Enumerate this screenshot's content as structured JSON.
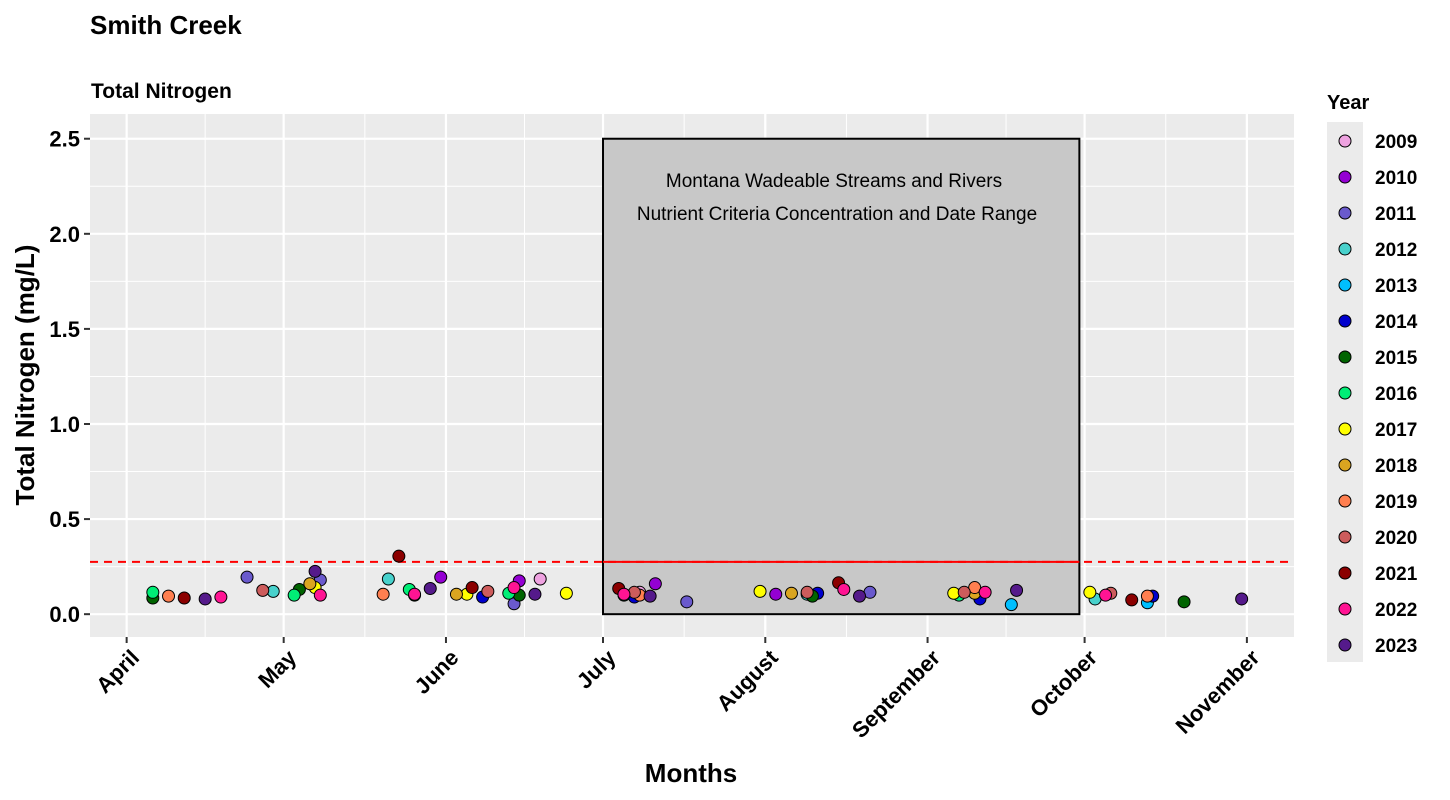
{
  "chart_data": {
    "type": "scatter",
    "title": "Smith Creek",
    "subtitle": "Total Nitrogen",
    "xlabel": "Months",
    "ylabel": "Total Nitrogen (mg/L)",
    "x_ticks": [
      "April",
      "May",
      "June",
      "July",
      "August",
      "September",
      "October",
      "November"
    ],
    "x_range": [
      "2023-03-25",
      "2023-11-10"
    ],
    "ylim": [
      -0.12,
      2.63
    ],
    "y_ticks": [
      "0.0",
      "0.5",
      "1.0",
      "1.5",
      "2.0",
      "2.5"
    ],
    "grid": true,
    "legend_title": "Year",
    "legend_position": "right",
    "threshold": 0.275,
    "criteria_window": {
      "start": "2023-07-01",
      "end": "2023-09-30",
      "ymin": 0,
      "ymax": 2.5
    },
    "annotation": [
      "Montana Wadeable Streams and Rivers",
      "Nutrient Criteria Concentration and Date Range"
    ],
    "series": [
      {
        "name": "2009",
        "color": "#eea2e0",
        "points": [
          [
            "2023-06-19",
            0.185
          ],
          [
            "2023-07-08",
            0.115
          ]
        ]
      },
      {
        "name": "2010",
        "color": "#9400d3",
        "points": [
          [
            "2023-05-31",
            0.195
          ],
          [
            "2023-06-15",
            0.175
          ],
          [
            "2023-07-11",
            0.16
          ],
          [
            "2023-08-03",
            0.105
          ]
        ]
      },
      {
        "name": "2011",
        "color": "#6a5acd",
        "points": [
          [
            "2023-04-24",
            0.195
          ],
          [
            "2023-05-08",
            0.18
          ],
          [
            "2023-06-14",
            0.055
          ],
          [
            "2023-07-17",
            0.065
          ],
          [
            "2023-08-21",
            0.115
          ]
        ]
      },
      {
        "name": "2012",
        "color": "#48d1cc",
        "points": [
          [
            "2023-04-29",
            0.12
          ],
          [
            "2023-05-21",
            0.185
          ],
          [
            "2023-08-09",
            0.105
          ],
          [
            "2023-10-03",
            0.08
          ]
        ]
      },
      {
        "name": "2013",
        "color": "#00bfff",
        "points": [
          [
            "2023-09-17",
            0.05
          ],
          [
            "2023-10-13",
            0.06
          ]
        ]
      },
      {
        "name": "2014",
        "color": "#0000cd",
        "points": [
          [
            "2023-06-08",
            0.09
          ],
          [
            "2023-07-07",
            0.09
          ],
          [
            "2023-08-11",
            0.11
          ],
          [
            "2023-09-11",
            0.08
          ],
          [
            "2023-10-14",
            0.095
          ]
        ]
      },
      {
        "name": "2015",
        "color": "#006400",
        "points": [
          [
            "2023-04-06",
            0.085
          ],
          [
            "2023-05-04",
            0.13
          ],
          [
            "2023-05-26",
            0.1
          ],
          [
            "2023-06-15",
            0.1
          ],
          [
            "2023-08-10",
            0.095
          ],
          [
            "2023-10-20",
            0.065
          ]
        ]
      },
      {
        "name": "2016",
        "color": "#00ee76",
        "points": [
          [
            "2023-04-06",
            0.115
          ],
          [
            "2023-05-03",
            0.1
          ],
          [
            "2023-05-25",
            0.13
          ],
          [
            "2023-06-13",
            0.11
          ],
          [
            "2023-07-05",
            0.1
          ],
          [
            "2023-09-07",
            0.1
          ]
        ]
      },
      {
        "name": "2017",
        "color": "#ffff00",
        "points": [
          [
            "2023-05-07",
            0.14
          ],
          [
            "2023-06-05",
            0.105
          ],
          [
            "2023-06-24",
            0.11
          ],
          [
            "2023-07-31",
            0.12
          ],
          [
            "2023-09-06",
            0.11
          ],
          [
            "2023-10-02",
            0.115
          ]
        ]
      },
      {
        "name": "2018",
        "color": "#daa520",
        "points": [
          [
            "2023-05-06",
            0.16
          ],
          [
            "2023-06-03",
            0.105
          ],
          [
            "2023-08-06",
            0.11
          ],
          [
            "2023-09-10",
            0.11
          ]
        ]
      },
      {
        "name": "2019",
        "color": "#ff7f50",
        "points": [
          [
            "2023-04-09",
            0.095
          ],
          [
            "2023-05-20",
            0.105
          ],
          [
            "2023-07-08",
            0.1
          ],
          [
            "2023-09-10",
            0.14
          ],
          [
            "2023-10-13",
            0.095
          ]
        ]
      },
      {
        "name": "2020",
        "color": "#cd5c5c",
        "points": [
          [
            "2023-04-27",
            0.125
          ],
          [
            "2023-06-09",
            0.12
          ],
          [
            "2023-07-07",
            0.115
          ],
          [
            "2023-08-09",
            0.115
          ],
          [
            "2023-09-08",
            0.115
          ],
          [
            "2023-10-06",
            0.11
          ]
        ]
      },
      {
        "name": "2021",
        "color": "#8b0000",
        "points": [
          [
            "2023-04-12",
            0.085
          ],
          [
            "2023-05-23",
            0.305
          ],
          [
            "2023-06-06",
            0.14
          ],
          [
            "2023-07-04",
            0.135
          ],
          [
            "2023-08-15",
            0.165
          ],
          [
            "2023-10-10",
            0.075
          ]
        ]
      },
      {
        "name": "2022",
        "color": "#ff1493",
        "points": [
          [
            "2023-04-19",
            0.09
          ],
          [
            "2023-05-08",
            0.1
          ],
          [
            "2023-05-26",
            0.105
          ],
          [
            "2023-06-14",
            0.14
          ],
          [
            "2023-07-05",
            0.105
          ],
          [
            "2023-08-16",
            0.13
          ],
          [
            "2023-09-12",
            0.115
          ],
          [
            "2023-10-05",
            0.1
          ]
        ]
      },
      {
        "name": "2023",
        "color": "#551a8b",
        "points": [
          [
            "2023-04-16",
            0.08
          ],
          [
            "2023-05-07",
            0.225
          ],
          [
            "2023-05-29",
            0.135
          ],
          [
            "2023-06-18",
            0.105
          ],
          [
            "2023-07-10",
            0.095
          ],
          [
            "2023-08-19",
            0.095
          ],
          [
            "2023-09-18",
            0.125
          ],
          [
            "2023-10-31",
            0.08
          ]
        ]
      }
    ]
  }
}
